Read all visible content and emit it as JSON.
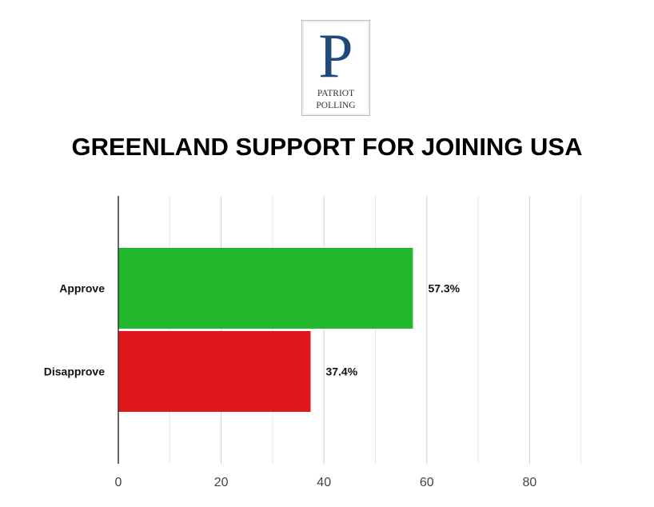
{
  "logo": {
    "letter": "P",
    "line1": "PATRIOT",
    "line2": "POLLING"
  },
  "chart_data": {
    "type": "bar",
    "orientation": "horizontal",
    "title": "GREENLAND SUPPORT FOR JOINING USA",
    "categories": [
      "Approve",
      "Disapprove"
    ],
    "values": [
      57.3,
      37.4
    ],
    "data_labels": [
      "57.3%",
      "37.4%"
    ],
    "colors": [
      "#22b82e",
      "#e0161b"
    ],
    "xlim": [
      0,
      100
    ],
    "xticks": [
      0,
      20,
      40,
      60,
      80
    ],
    "grid": true,
    "xlabel": "",
    "ylabel": ""
  }
}
